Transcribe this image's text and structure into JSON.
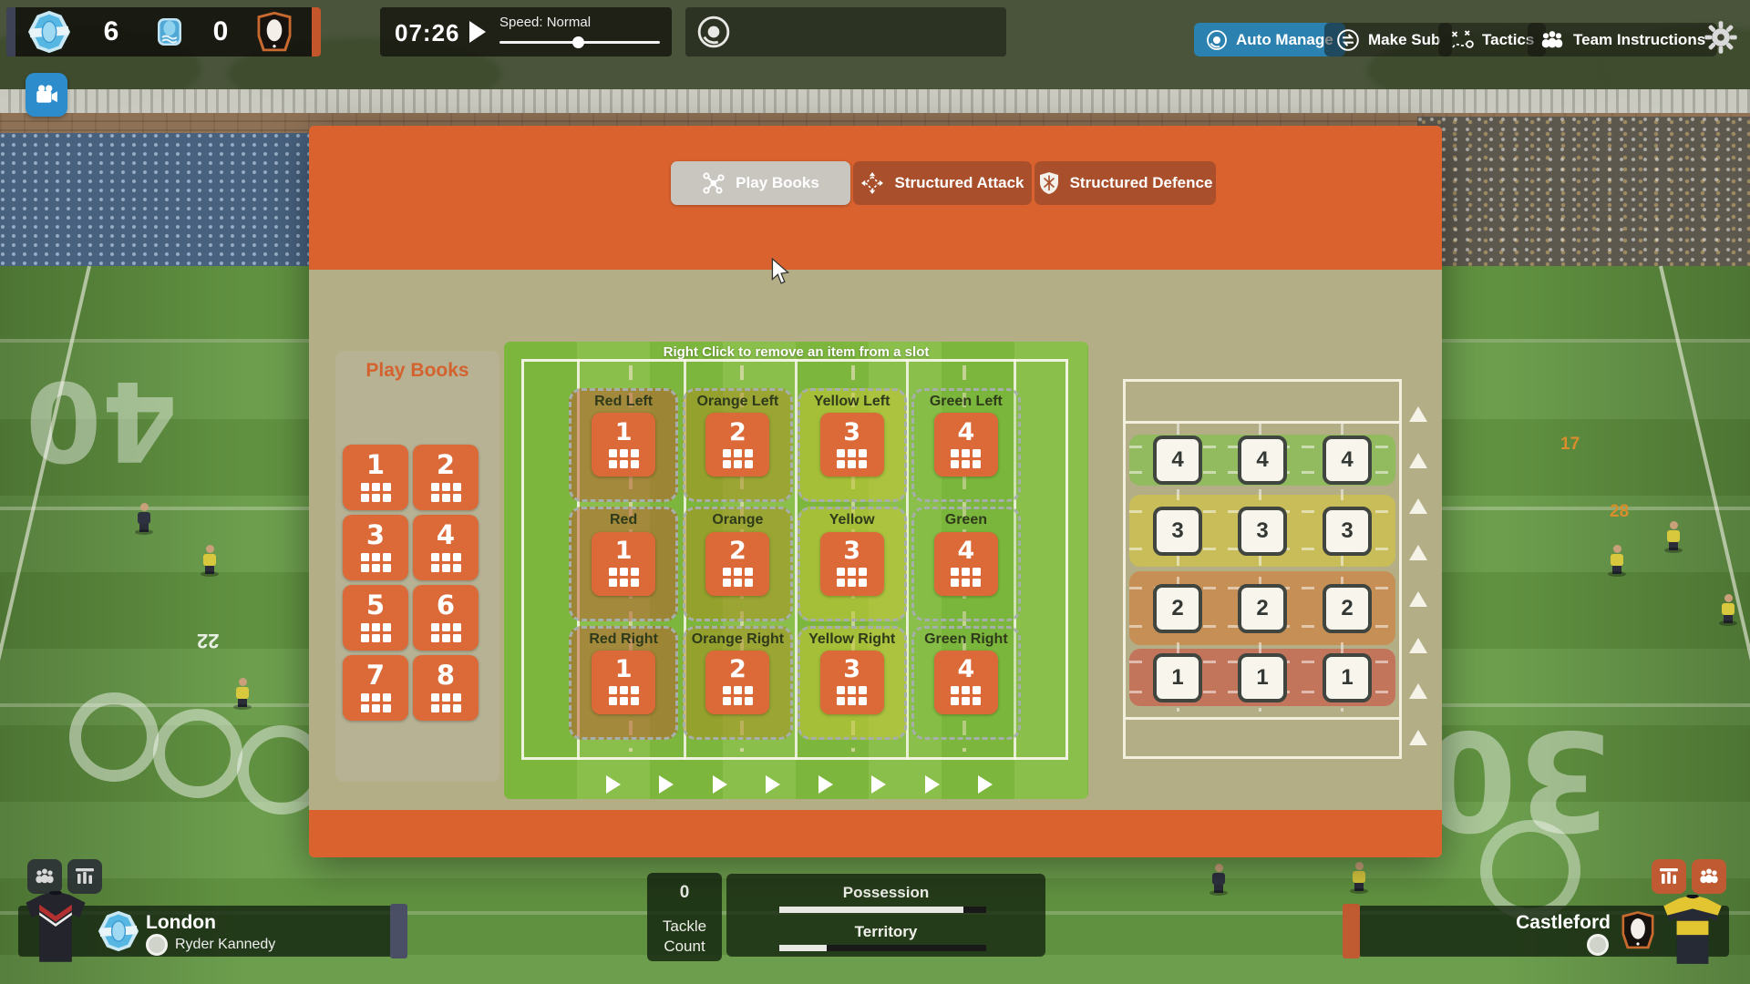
{
  "topbar": {
    "score": {
      "home_score": "6",
      "away_score": "0"
    },
    "timer": "07:26",
    "speed_label": "Speed: Normal",
    "speed_pct": 49,
    "auto_manage": "Auto Manage",
    "make_sub": "Make Sub",
    "tactics": "Tactics",
    "team_instructions": "Team Instructions"
  },
  "dialog": {
    "active_tab": "Play Books",
    "tabs": [
      {
        "label": "Play Books"
      },
      {
        "label": "Structured Attack"
      },
      {
        "label": "Structured Defence"
      }
    ],
    "hint": "Right Click to remove an item from a slot",
    "playbooks": {
      "title": "Play Books",
      "tiles": [
        "1",
        "2",
        "3",
        "4",
        "5",
        "6",
        "7",
        "8"
      ]
    },
    "slots": [
      {
        "label": "Red Left",
        "tile": "1"
      },
      {
        "label": "Orange Left",
        "tile": "2"
      },
      {
        "label": "Yellow Left",
        "tile": "3"
      },
      {
        "label": "Green Left",
        "tile": "4"
      },
      {
        "label": "Red",
        "tile": "1"
      },
      {
        "label": "Orange",
        "tile": "2"
      },
      {
        "label": "Yellow",
        "tile": "3"
      },
      {
        "label": "Green",
        "tile": "4"
      },
      {
        "label": "Red Right",
        "tile": "1"
      },
      {
        "label": "Orange Right",
        "tile": "2"
      },
      {
        "label": "Yellow Right",
        "tile": "3"
      },
      {
        "label": "Green Right",
        "tile": "4"
      }
    ],
    "depth_grid": {
      "cells": [
        "4",
        "4",
        "4",
        "3",
        "3",
        "3",
        "2",
        "2",
        "2",
        "1",
        "1",
        "1"
      ]
    }
  },
  "hud": {
    "home_team": "London",
    "home_coach": "Ryder Kannedy",
    "away_team": "Castleford",
    "tackle_value": "0",
    "tackle_label_1": "Tackle",
    "tackle_label_2": "Count",
    "possession_label": "Possession",
    "territory_label": "Territory",
    "possession_pct": 89,
    "territory_pct": 23
  },
  "background": {
    "field_numbers": [
      "40",
      "22",
      "17",
      "28",
      "30"
    ]
  },
  "colors": {
    "accent_orange": "#D9622F",
    "active_blue": "#2B81B0",
    "field_green": "#7DB63D",
    "panel_khaki": "#B3AE85"
  }
}
